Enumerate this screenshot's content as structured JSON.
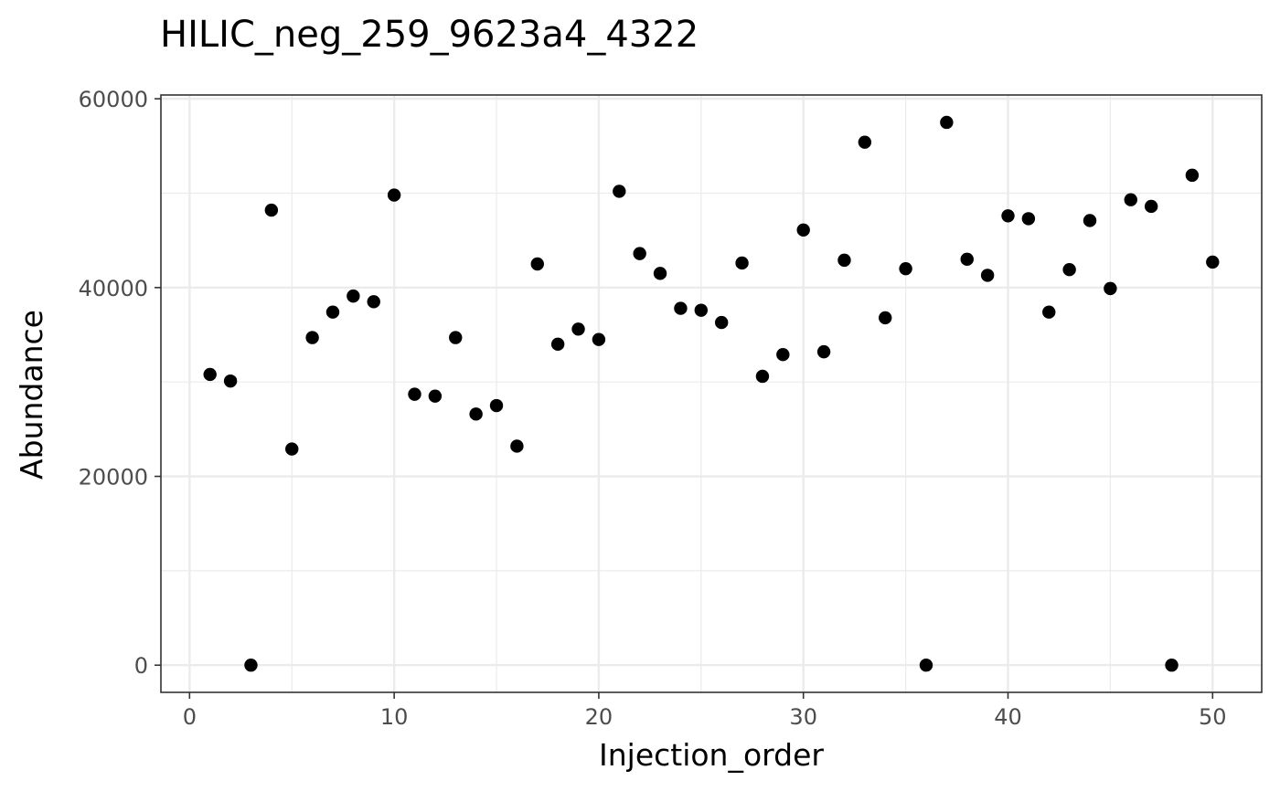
{
  "chart_data": {
    "type": "scatter",
    "title": "HILIC_neg_259_9623a4_4322",
    "xlabel": "Injection_order",
    "ylabel": "Abundance",
    "xlim": [
      -1.4,
      52.4
    ],
    "ylim": [
      -2880,
      60400
    ],
    "x_ticks": [
      0,
      10,
      20,
      30,
      40,
      50
    ],
    "y_ticks": [
      0,
      20000,
      40000,
      60000
    ],
    "x_tick_labels": [
      "0",
      "10",
      "20",
      "30",
      "40",
      "50"
    ],
    "y_tick_labels": [
      "0",
      "20000",
      "40000",
      "60000"
    ],
    "grid": true,
    "point_color": "#000000",
    "x": [
      1,
      2,
      3,
      4,
      5,
      6,
      7,
      8,
      9,
      10,
      11,
      12,
      13,
      14,
      15,
      16,
      17,
      18,
      19,
      20,
      21,
      22,
      23,
      24,
      25,
      26,
      27,
      28,
      29,
      30,
      31,
      32,
      33,
      34,
      35,
      36,
      37,
      38,
      39,
      40,
      41,
      42,
      43,
      44,
      45,
      46,
      47,
      48,
      49,
      50
    ],
    "y": [
      30800,
      30100,
      0,
      48200,
      22900,
      34700,
      37400,
      39100,
      38500,
      49800,
      28700,
      28500,
      34700,
      26600,
      27500,
      23200,
      42500,
      34000,
      35600,
      34500,
      50200,
      43600,
      41500,
      37800,
      37600,
      36300,
      42600,
      30600,
      32900,
      46100,
      33200,
      42900,
      55400,
      36800,
      42000,
      0,
      57500,
      43000,
      41300,
      47600,
      47300,
      37400,
      41900,
      47100,
      39900,
      49300,
      48600,
      0,
      51900,
      42700
    ]
  }
}
